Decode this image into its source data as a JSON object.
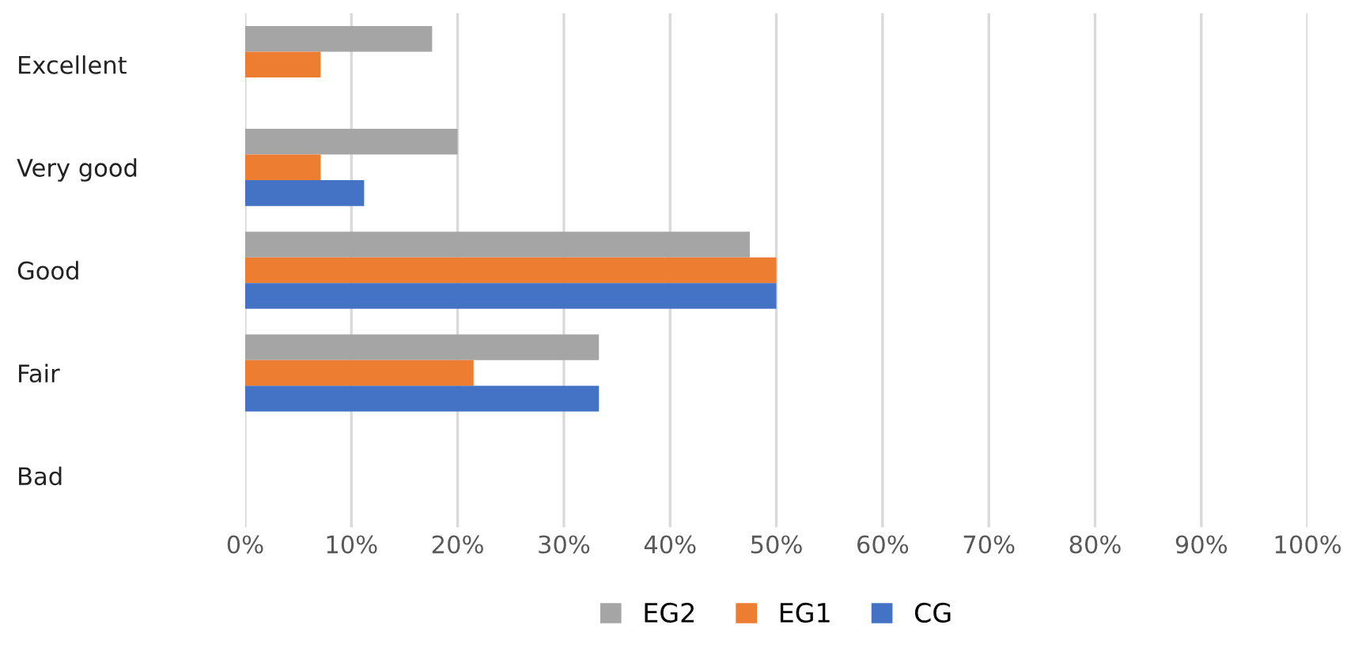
{
  "chart_data": {
    "type": "bar",
    "orientation": "horizontal",
    "categories": [
      "Excellent",
      "Very good",
      "Good",
      "Fair",
      "Bad"
    ],
    "series": [
      {
        "name": "EG2",
        "color": "#a5a5a5",
        "values": [
          17.6,
          20,
          47.5,
          33.3,
          0
        ]
      },
      {
        "name": "EG1",
        "color": "#ed7d31",
        "values": [
          7.1,
          7.1,
          50,
          21.5,
          0
        ]
      },
      {
        "name": "CG",
        "color": "#4472c4",
        "values": [
          0,
          11.2,
          50,
          33.3,
          0
        ]
      }
    ],
    "xlim": [
      0,
      100
    ],
    "xticks": [
      {
        "value": 0,
        "label": "0%"
      },
      {
        "value": 10,
        "label": "10%"
      },
      {
        "value": 20,
        "label": "20%"
      },
      {
        "value": 30,
        "label": "30%"
      },
      {
        "value": 40,
        "label": "40%"
      },
      {
        "value": 50,
        "label": "50%"
      },
      {
        "value": 60,
        "label": "60%"
      },
      {
        "value": 70,
        "label": "70%"
      },
      {
        "value": 80,
        "label": "80%"
      },
      {
        "value": 90,
        "label": "90%"
      },
      {
        "value": 100,
        "label": "100%"
      }
    ],
    "grid": "x",
    "legend": "bottom"
  }
}
